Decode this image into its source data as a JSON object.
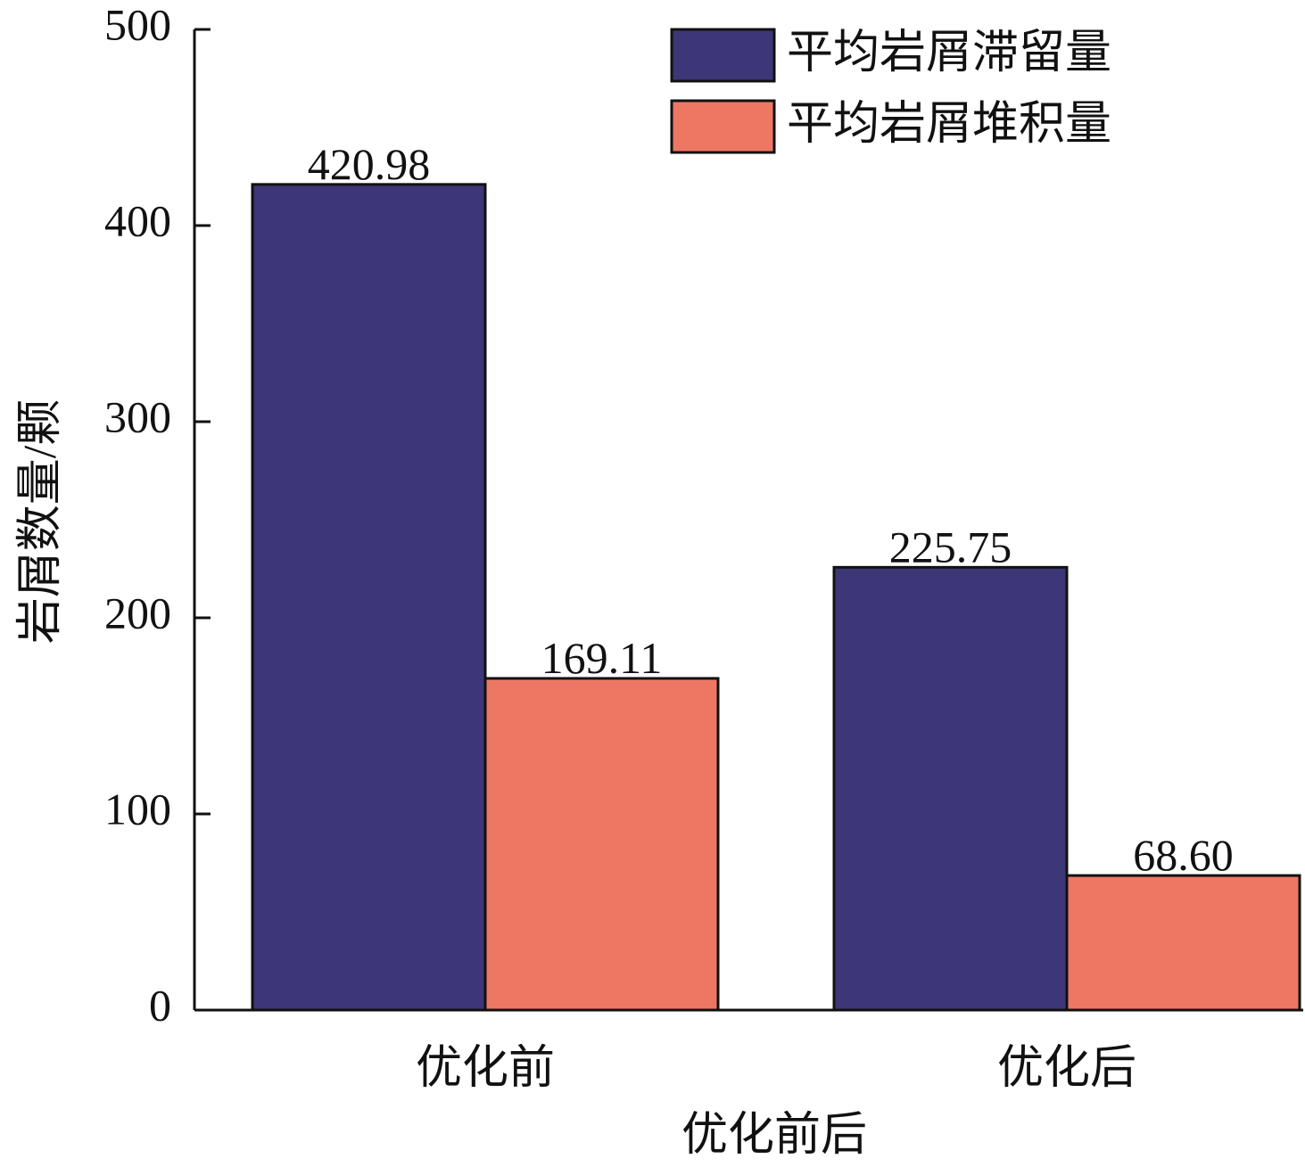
{
  "chart_data": {
    "type": "bar",
    "x_label": "优化前后",
    "y_label": "岩屑数量/颗",
    "categories": [
      "优化前",
      "优化后"
    ],
    "series": [
      {
        "name": "平均岩屑滞留量",
        "color": "#3d3677",
        "values": [
          420.98,
          225.75
        ],
        "value_labels": [
          "420.98",
          "225.75"
        ]
      },
      {
        "name": "平均岩屑堆积量",
        "color": "#ee7763",
        "values": [
          169.11,
          68.6
        ],
        "value_labels": [
          "169.11",
          "68.60"
        ]
      }
    ],
    "ylim": [
      0,
      500
    ],
    "yticks": [
      0,
      100,
      200,
      300,
      400,
      500
    ],
    "legend": "upper right"
  }
}
